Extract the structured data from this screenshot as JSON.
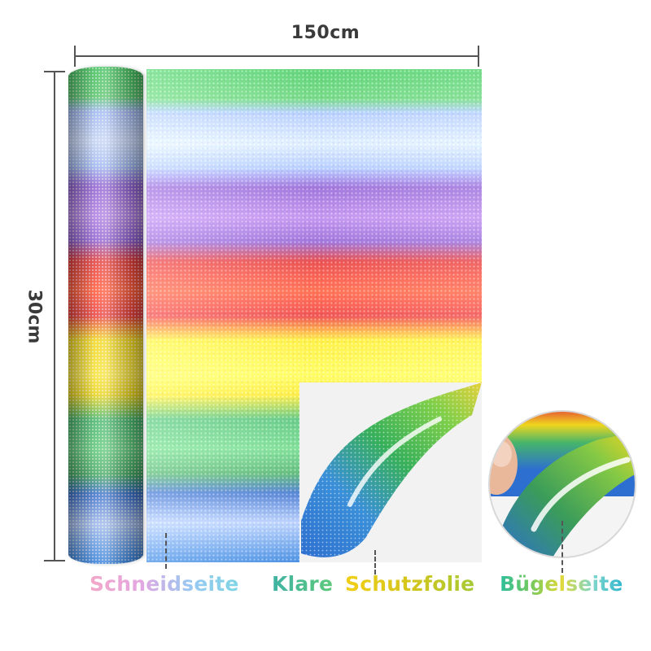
{
  "dimensions": {
    "width_label": "150cm",
    "height_label": "30cm"
  },
  "labels": {
    "cutting_side": "Schneidseite",
    "clear_prefix": "Klare",
    "clear_suffix": "Schutzfolie",
    "ironing_side": "Bügelseite"
  },
  "colors": {
    "green": "#3fbf5a",
    "light_blue": "#9db6ef",
    "purple": "#8e5fcf",
    "red": "#e23a3a",
    "yellow": "#f0d61e",
    "blue": "#2e7bd6",
    "dimension_line": "#555555",
    "backing": "#f2f2f2"
  },
  "icons": {
    "peel_detail": "magnified-peel-circle"
  }
}
